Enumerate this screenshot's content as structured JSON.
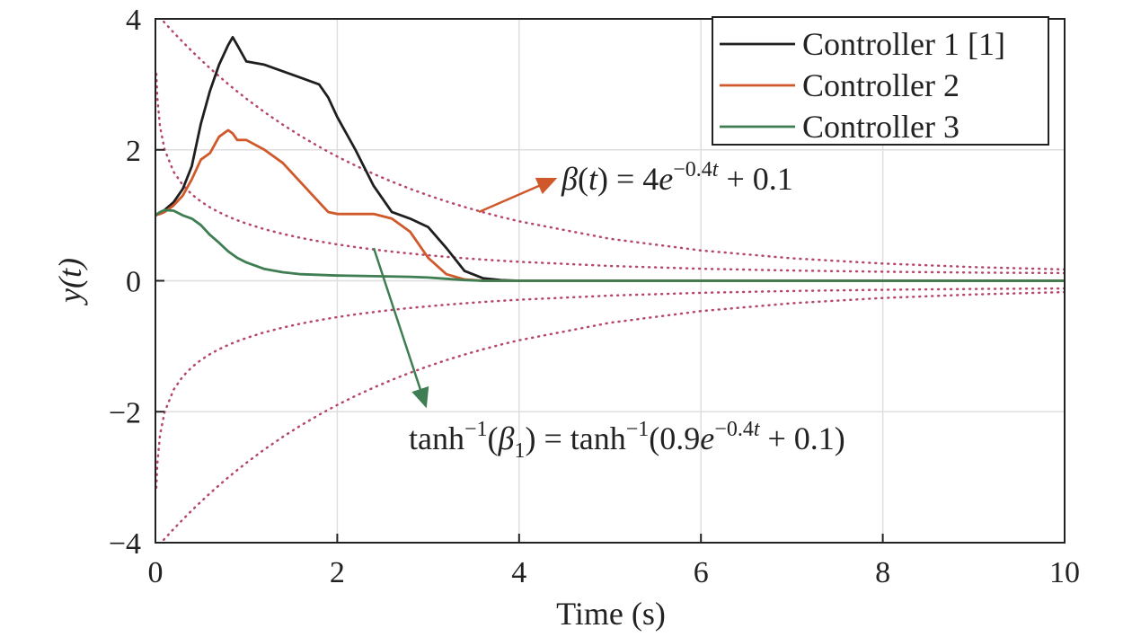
{
  "chart_data": {
    "type": "line",
    "xlabel": "Time (s)",
    "ylabel": "y(t)",
    "xlim": [
      0,
      10
    ],
    "ylim": [
      -4,
      4
    ],
    "xticks": [
      0,
      2,
      4,
      6,
      8,
      10
    ],
    "yticks": [
      {
        "value": -4,
        "label": "−4"
      },
      {
        "value": -2,
        "label": "−2"
      },
      0,
      2,
      4
    ],
    "grid": true,
    "legend": "upper right",
    "x": [
      0,
      0.01,
      0.02,
      0.05,
      0.1,
      0.2,
      0.3,
      0.4,
      0.5,
      0.6,
      0.7,
      0.8,
      0.85,
      0.9,
      1,
      1.2,
      1.4,
      1.6,
      1.8,
      1.9,
      2,
      2.2,
      2.4,
      2.6,
      2.8,
      3,
      3.2,
      3.4,
      3.6,
      3.8,
      4,
      5,
      6,
      7,
      8,
      9,
      10
    ],
    "series": [
      {
        "color": "#b5486a",
        "dash": "dotted",
        "values": [
          4.1,
          4.084,
          4.068,
          4.021,
          3.943,
          3.792,
          3.648,
          3.508,
          3.375,
          3.246,
          3.123,
          3.004,
          2.947,
          2.891,
          2.781,
          2.575,
          2.385,
          2.209,
          2.047,
          1.971,
          1.897,
          1.759,
          1.632,
          1.514,
          1.405,
          1.305,
          1.212,
          1.127,
          1.048,
          0.975,
          0.908,
          0.641,
          0.463,
          0.343,
          0.263,
          0.209,
          0.173
        ]
      },
      {
        "color": "#b5486a",
        "dash": "dotted",
        "values": [
          -4.1,
          -4.084,
          -4.068,
          -4.021,
          -3.943,
          -3.792,
          -3.648,
          -3.508,
          -3.375,
          -3.246,
          -3.123,
          -3.004,
          -2.947,
          -2.891,
          -2.781,
          -2.575,
          -2.385,
          -2.209,
          -2.047,
          -1.971,
          -1.897,
          -1.759,
          -1.632,
          -1.514,
          -1.405,
          -1.305,
          -1.212,
          -1.127,
          -1.048,
          -0.975,
          -0.908,
          -0.641,
          -0.463,
          -0.343,
          -0.263,
          -0.209,
          -0.173
        ]
      },
      {
        "color": "#b5486a",
        "dash": "dotted",
        "values": [
          null,
          3.159,
          2.814,
          2.357,
          2.01,
          1.664,
          1.463,
          1.32,
          1.21,
          1.121,
          1.046,
          0.981,
          0.952,
          0.924,
          0.874,
          0.787,
          0.716,
          0.654,
          0.602,
          0.578,
          0.555,
          0.514,
          0.478,
          0.445,
          0.416,
          0.39,
          0.366,
          0.344,
          0.324,
          0.306,
          0.29,
          0.226,
          0.184,
          0.156,
          0.138,
          0.125,
          0.117
        ]
      },
      {
        "color": "#b5486a",
        "dash": "dotted",
        "values": [
          null,
          -3.159,
          -2.814,
          -2.357,
          -2.01,
          -1.664,
          -1.463,
          -1.32,
          -1.21,
          -1.121,
          -1.046,
          -0.981,
          -0.952,
          -0.924,
          -0.874,
          -0.787,
          -0.716,
          -0.654,
          -0.602,
          -0.578,
          -0.555,
          -0.514,
          -0.478,
          -0.445,
          -0.416,
          -0.39,
          -0.366,
          -0.344,
          -0.324,
          -0.306,
          -0.29,
          -0.226,
          -0.184,
          -0.156,
          -0.138,
          -0.125,
          -0.117
        ]
      },
      {
        "name": "Controller 1 [1]",
        "color": "#1f1f1f",
        "values": [
          1.0,
          1.01,
          1.02,
          1.03,
          1.08,
          1.2,
          1.4,
          1.75,
          2.4,
          2.9,
          3.3,
          3.6,
          3.72,
          3.6,
          3.35,
          3.3,
          3.2,
          3.1,
          3.0,
          2.8,
          2.5,
          2.0,
          1.45,
          1.05,
          0.95,
          0.82,
          0.5,
          0.15,
          0.04,
          0.01,
          0,
          0,
          0,
          0,
          0,
          0,
          0
        ]
      },
      {
        "name": "Controller 2",
        "color": "#d0592c",
        "values": [
          1.0,
          1.0,
          1.01,
          1.02,
          1.05,
          1.15,
          1.3,
          1.55,
          1.85,
          1.95,
          2.2,
          2.3,
          2.25,
          2.15,
          2.15,
          2.0,
          1.8,
          1.5,
          1.2,
          1.05,
          1.02,
          1.02,
          1.02,
          0.95,
          0.75,
          0.35,
          0.1,
          0.02,
          0,
          0,
          0,
          0,
          0,
          0,
          0,
          0,
          0
        ]
      },
      {
        "name": "Controller 3",
        "color": "#3f7d52",
        "values": [
          1.0,
          1.01,
          1.02,
          1.05,
          1.08,
          1.07,
          1.0,
          0.95,
          0.85,
          0.7,
          0.58,
          0.45,
          0.4,
          0.35,
          0.28,
          0.18,
          0.13,
          0.1,
          0.09,
          0.085,
          0.08,
          0.075,
          0.07,
          0.065,
          0.06,
          0.05,
          0.03,
          0.01,
          0,
          0,
          0,
          0,
          0,
          0,
          0,
          0,
          0
        ]
      }
    ],
    "annotations": [
      {
        "parts": [
          {
            "text": "β",
            "italic": true
          },
          {
            "text": "("
          },
          {
            "text": "t",
            "italic": true
          },
          {
            "text": ") = 4"
          },
          {
            "text": "e",
            "italic": true
          },
          {
            "text": "−0.4",
            "sup": true
          },
          {
            "text": "t",
            "sup": true,
            "italic": true
          },
          {
            "text": " + 0.1"
          }
        ]
      },
      {
        "parts": [
          {
            "text": "tanh"
          },
          {
            "text": "−1",
            "sup": true
          },
          {
            "text": "("
          },
          {
            "text": "β",
            "italic": true
          },
          {
            "text": "1",
            "sub": true
          },
          {
            "text": ") = tanh"
          },
          {
            "text": "−1",
            "sup": true
          },
          {
            "text": "(0.9"
          },
          {
            "text": "e",
            "italic": true
          },
          {
            "text": "−0.4",
            "sup": true
          },
          {
            "text": "t",
            "sup": true,
            "italic": true
          },
          {
            "text": " + 0.1)"
          }
        ]
      }
    ]
  }
}
